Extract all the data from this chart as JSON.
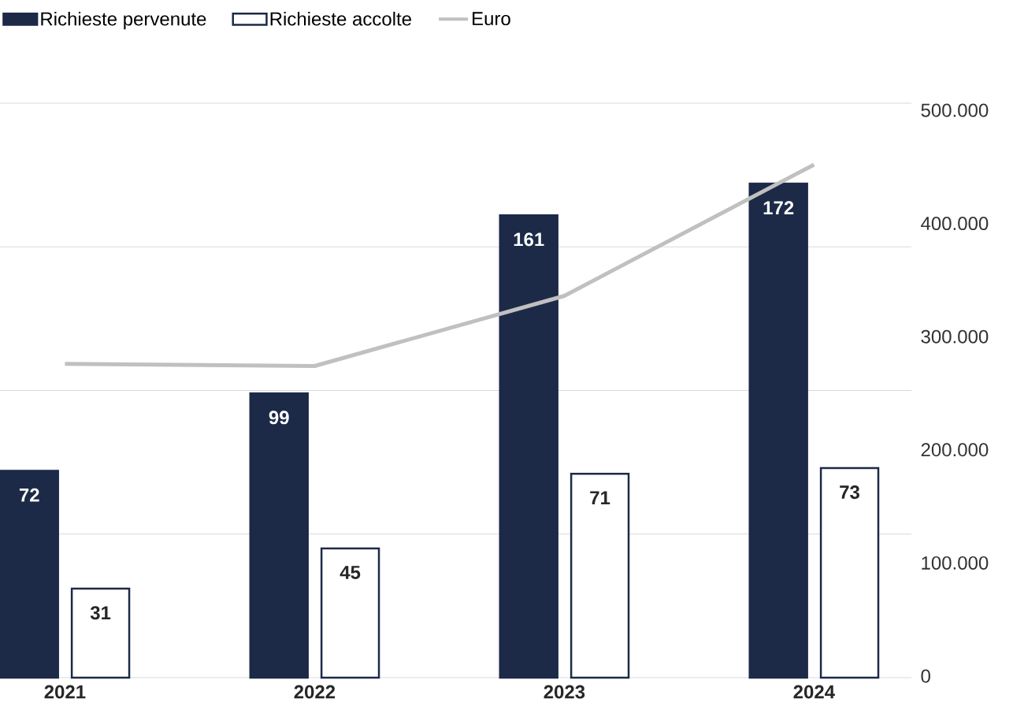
{
  "chart_data": {
    "type": "bar",
    "categories": [
      "2021",
      "2022",
      "2023",
      "2024"
    ],
    "series": [
      {
        "name": "Richieste pervenute",
        "color": "#1c2a48",
        "values": [
          72,
          99,
          161,
          172
        ],
        "value_labels": [
          "72",
          "99",
          "161",
          "172"
        ]
      },
      {
        "name": "Richieste accolte",
        "color": "#ffffff",
        "values": [
          31,
          45,
          71,
          73
        ],
        "value_labels": [
          "31",
          "45",
          "71",
          "73"
        ]
      },
      {
        "name": "Euro",
        "type": "line",
        "axis": "y2",
        "color": "#c0c0c0",
        "values": [
          276000,
          274000,
          336000,
          452000
        ]
      }
    ],
    "ylim": [
      0,
      200
    ],
    "yticks": [
      {
        "value": 0,
        "label": null
      },
      {
        "value": 50,
        "label": null
      },
      {
        "value": 100,
        "label": null
      },
      {
        "value": 150,
        "label": null
      },
      {
        "value": 200,
        "label": null
      }
    ],
    "y2lim": [
      0,
      500000
    ],
    "y2ticks": [
      0,
      {
        "value": 100000,
        "label": "100.000"
      },
      {
        "value": 200000,
        "label": "200.000"
      },
      {
        "value": 300000,
        "label": "300.000"
      },
      {
        "value": 400000,
        "label": "400.000"
      },
      {
        "value": 500000,
        "label": "500.000"
      }
    ],
    "grid": "y",
    "legend": "top left",
    "marker": "none"
  }
}
